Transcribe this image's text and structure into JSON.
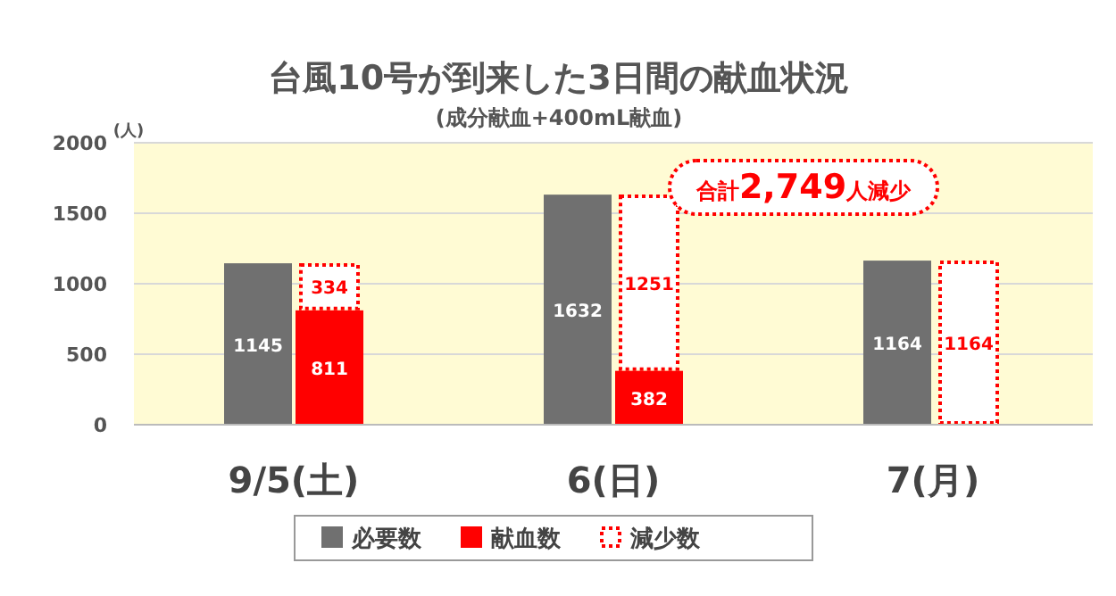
{
  "chart_data": {
    "type": "bar",
    "title": "台風10号が到来した3日間の献血状況",
    "subtitle": "(成分献血+400mL献血)",
    "ylabel": "(人)",
    "categories": [
      "9/5(土)",
      "6(日)",
      "7(月)"
    ],
    "series": [
      {
        "name": "必要数",
        "color": "#707070",
        "values": [
          1145,
          1632,
          1164
        ],
        "value_labels": [
          "1145",
          "1632",
          "1164"
        ]
      },
      {
        "name": "献血数",
        "color": "#ff0000",
        "values": [
          811,
          382,
          0
        ],
        "value_labels": [
          "811",
          "382",
          null
        ]
      },
      {
        "name": "減少数",
        "color": "#ff0000",
        "line_style": "dotted",
        "base": [
          811,
          382,
          0
        ],
        "values": [
          334,
          1251,
          1164
        ],
        "value_labels": [
          "334",
          "1251",
          "1164"
        ]
      }
    ],
    "ylim": [
      0,
      2000
    ],
    "yticks": [
      0,
      500,
      1000,
      1500,
      2000
    ],
    "grid": "y",
    "legend": "bottom",
    "annotations": [
      "合計**2,749**人減少"
    ]
  }
}
